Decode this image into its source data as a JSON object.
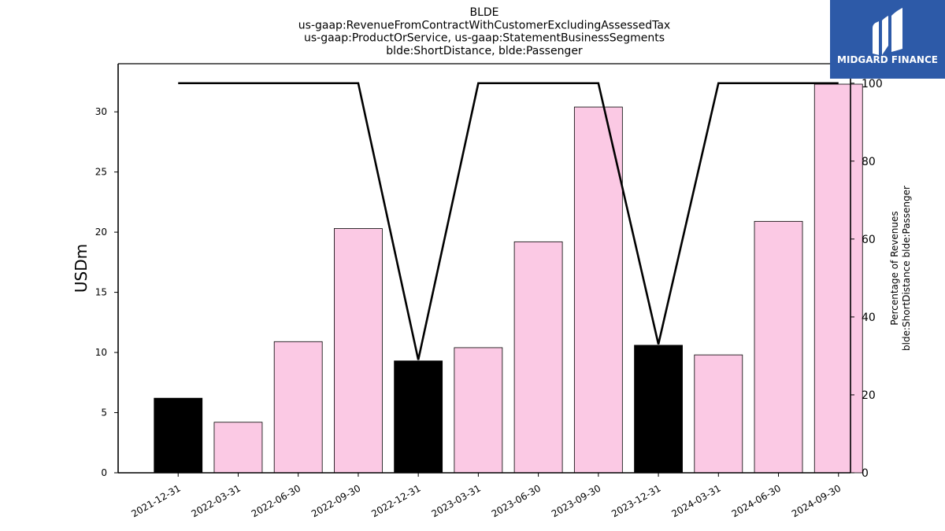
{
  "chart_data": {
    "type": "bar",
    "title_lines": [
      "BLDE",
      "us-gaap:RevenueFromContractWithCustomerExcludingAssessedTax",
      "us-gaap:ProductOrService, us-gaap:StatementBusinessSegments",
      "blde:ShortDistance, blde:Passenger"
    ],
    "ylabel": "USDm",
    "ylabel_right_lines": [
      "Percentage of Revenues",
      "blde:ShortDistance blde:Passenger"
    ],
    "categories": [
      "2021-12-31",
      "2022-03-31",
      "2022-06-30",
      "2022-09-30",
      "2022-12-31",
      "2023-03-31",
      "2023-06-30",
      "2023-09-30",
      "2023-12-31",
      "2024-03-31",
      "2024-06-30",
      "2024-09-30"
    ],
    "values": [
      6.2,
      4.2,
      10.9,
      20.3,
      9.3,
      10.4,
      19.2,
      30.4,
      10.6,
      9.8,
      20.9,
      32.3
    ],
    "bar_colors": [
      "#000000",
      "#fbc9e4",
      "#fbc9e4",
      "#fbc9e4",
      "#000000",
      "#fbc9e4",
      "#fbc9e4",
      "#fbc9e4",
      "#000000",
      "#fbc9e4",
      "#fbc9e4",
      "#fbc9e4"
    ],
    "ylim": [
      0,
      34
    ],
    "yticks": [
      0,
      5,
      10,
      15,
      20,
      25,
      30
    ],
    "series": [
      {
        "values": [
          100,
          100,
          100,
          100,
          29,
          100,
          100,
          100,
          33,
          100,
          100,
          100
        ],
        "axis": "right",
        "color": "#000000"
      }
    ],
    "ylim_right": [
      0,
      105
    ],
    "yticks_right": [
      0,
      20,
      40,
      60,
      80,
      100
    ]
  },
  "logo": {
    "text": "MIDGARD FINANCE",
    "bg": "#2d5aa8"
  }
}
